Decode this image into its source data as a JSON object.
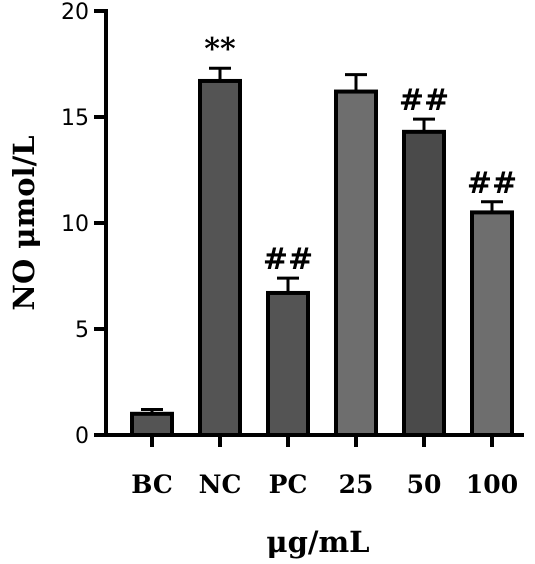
{
  "chart_data": {
    "type": "bar",
    "title": "",
    "xlabel": "μg/mL",
    "ylabel": "NO μmol/L",
    "categories": [
      "BC",
      "NC",
      "PC",
      "25",
      "50",
      "100"
    ],
    "values": [
      1.0,
      16.7,
      6.7,
      16.2,
      14.3,
      10.5
    ],
    "errors": [
      0.2,
      0.6,
      0.7,
      0.8,
      0.6,
      0.5
    ],
    "significance": [
      "",
      "**",
      "##",
      "",
      "##",
      "##"
    ],
    "bar_colors": [
      "#545454",
      "#545454",
      "#545454",
      "#6e6e6e",
      "#4a4a4a",
      "#6e6e6e"
    ],
    "ylim": [
      0,
      20
    ],
    "yticks": [
      0,
      5,
      10,
      15,
      20
    ],
    "grid": false,
    "legend": "none"
  }
}
